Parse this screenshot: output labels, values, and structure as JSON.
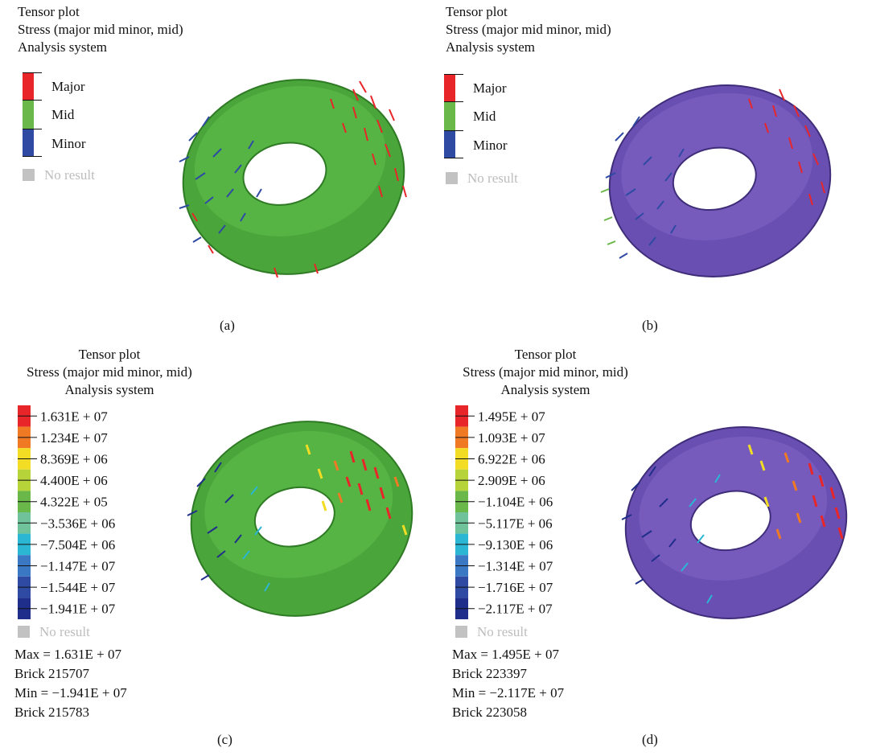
{
  "panels": [
    {
      "id": "a",
      "header": [
        "Tensor plot",
        "Stress (major mid minor, mid)",
        "Analysis system"
      ],
      "legend_type": "principal",
      "legend": [
        {
          "label": "Major",
          "color": "#e8262a"
        },
        {
          "label": "Mid",
          "color": "#6ab84a"
        },
        {
          "label": "Minor",
          "color": "#2e4aa3"
        }
      ],
      "no_result": "No result",
      "caption": "(a)",
      "model_color": "#4aa63a"
    },
    {
      "id": "b",
      "header": [
        "Tensor plot",
        "Stress (major mid minor, mid)",
        "Analysis system"
      ],
      "legend_type": "principal",
      "legend": [
        {
          "label": "Major",
          "color": "#e8262a"
        },
        {
          "label": "Mid",
          "color": "#6ab84a"
        },
        {
          "label": "Minor",
          "color": "#2e4aa3"
        }
      ],
      "no_result": "No result",
      "caption": "(b)",
      "model_color": "#6a4fb3"
    },
    {
      "id": "c",
      "header": [
        "Tensor plot",
        "Stress (major mid minor, mid)",
        "Analysis system"
      ],
      "legend_type": "scale",
      "scale": [
        {
          "value": "1.631E + 07",
          "color": "#e8262a"
        },
        {
          "value": "1.234E + 07",
          "color": "#f07a24"
        },
        {
          "value": "8.369E + 06",
          "color": "#f2dc24"
        },
        {
          "value": "4.400E + 06",
          "color": "#b6d43a"
        },
        {
          "value": "4.322E + 05",
          "color": "#6ab84a"
        },
        {
          "value": "−3.536E + 06",
          "color": "#6fc29a"
        },
        {
          "value": "−7.504E + 06",
          "color": "#2bb6d4"
        },
        {
          "value": "−1.147E + 07",
          "color": "#3a78c4"
        },
        {
          "value": "−1.544E + 07",
          "color": "#2e4aa3"
        },
        {
          "value": "−1.941E + 07",
          "color": "#1f2e8a"
        }
      ],
      "no_result": "No result",
      "stats": [
        "Max = 1.631E + 07",
        "Brick 215707",
        "Min = −1.941E + 07",
        "Brick 215783"
      ],
      "caption": "(c)",
      "model_color": "#4aa63a"
    },
    {
      "id": "d",
      "header": [
        "Tensor plot",
        "Stress (major mid minor, mid)",
        "Analysis system"
      ],
      "legend_type": "scale",
      "scale": [
        {
          "value": "1.495E + 07",
          "color": "#e8262a"
        },
        {
          "value": "1.093E + 07",
          "color": "#f07a24"
        },
        {
          "value": "6.922E + 06",
          "color": "#f2dc24"
        },
        {
          "value": "2.909E + 06",
          "color": "#b6d43a"
        },
        {
          "value": "−1.104E + 06",
          "color": "#6ab84a"
        },
        {
          "value": "−5.117E + 06",
          "color": "#6fc29a"
        },
        {
          "value": "−9.130E + 06",
          "color": "#2bb6d4"
        },
        {
          "value": "−1.314E + 07",
          "color": "#3a78c4"
        },
        {
          "value": "−1.716E + 07",
          "color": "#2e4aa3"
        },
        {
          "value": "−2.117E + 07",
          "color": "#1f2e8a"
        }
      ],
      "no_result": "No result",
      "stats": [
        "Max = 1.495E + 07",
        "Brick 223397",
        "Min = −2.117E + 07",
        "Brick 223058"
      ],
      "caption": "(d)",
      "model_color": "#6a4fb3"
    }
  ]
}
